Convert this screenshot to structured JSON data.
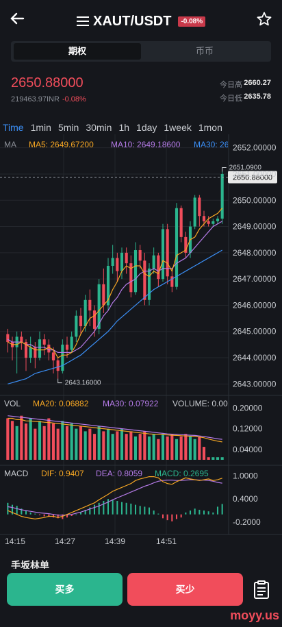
{
  "header": {
    "title": "XAUT/USDT",
    "change_badge": "-0.08%"
  },
  "segment": {
    "active": "期权",
    "inactive": "币币"
  },
  "price": {
    "last": "2650.88000",
    "inr": "219463.97INR",
    "change": "-0.08%"
  },
  "stats": {
    "high_label": "今日高",
    "high_value": "2660.27",
    "low_label": "今日低",
    "low_value": "2635.78"
  },
  "timeframes": [
    "Time",
    "1min",
    "5min",
    "30min",
    "1h",
    "1day",
    "1week",
    "1mon"
  ],
  "ma_legend": {
    "label": "MA",
    "ma5": "MA5: 2649.67200",
    "ma10": "MA10: 2649.18600",
    "ma30": "MA30: 26"
  },
  "vol_legend": {
    "label": "VOL",
    "ma20": "MA20: 0.06882",
    "ma30": "MA30: 0.07922",
    "volume": "VOLUME: 0.00"
  },
  "macd_legend": {
    "label": "MACD",
    "dif": "DIF: 0.9407",
    "dea": "DEA: 0.8059",
    "macd": "MACD: 0.2695"
  },
  "price_axis": [
    "2652.00000",
    "2651.00000",
    "2650.00000",
    "2649.00000",
    "2648.00000",
    "2647.00000",
    "2646.00000",
    "2645.00000",
    "2644.00000",
    "2643.00000"
  ],
  "current_price_tag": "2650.88000",
  "high_marker": "2651.0900",
  "low_marker": "2643.16000",
  "vol_axis": [
    "0.20000",
    "0.12000",
    "0.04000"
  ],
  "macd_axis": [
    "1.0000",
    "0.4000",
    "-0.2000"
  ],
  "time_axis": [
    "14:15",
    "14:27",
    "14:39",
    "14:51"
  ],
  "footer": {
    "buy": "买多",
    "sell": "买少",
    "partial_heading": "手坂林单"
  },
  "watermark": "moyy.us",
  "colors": {
    "up": "#2bb58e",
    "down": "#f14d5b",
    "ma5": "#f5a623",
    "ma10": "#b57be8",
    "ma30": "#3b8ff6",
    "accent": "#3b8ff6"
  },
  "chart_data": {
    "type": "candlestick",
    "price_ylim": [
      2642.8,
      2652.2
    ],
    "candles": [
      {
        "o": 2644.9,
        "c": 2644.6,
        "h": 2645.1,
        "l": 2644.2
      },
      {
        "o": 2644.6,
        "c": 2644.4,
        "h": 2644.8,
        "l": 2643.9
      },
      {
        "o": 2644.4,
        "c": 2644.8,
        "h": 2645.0,
        "l": 2643.4
      },
      {
        "o": 2644.8,
        "c": 2644.6,
        "h": 2645.0,
        "l": 2644.3
      },
      {
        "o": 2644.6,
        "c": 2644.0,
        "h": 2644.7,
        "l": 2643.5
      },
      {
        "o": 2644.0,
        "c": 2644.4,
        "h": 2644.8,
        "l": 2643.8
      },
      {
        "o": 2644.4,
        "c": 2644.0,
        "h": 2644.6,
        "l": 2643.6
      },
      {
        "o": 2644.0,
        "c": 2644.7,
        "h": 2645.0,
        "l": 2643.9
      },
      {
        "o": 2644.7,
        "c": 2644.5,
        "h": 2644.9,
        "l": 2644.1
      },
      {
        "o": 2644.5,
        "c": 2644.2,
        "h": 2644.7,
        "l": 2643.9
      },
      {
        "o": 2644.2,
        "c": 2643.9,
        "h": 2644.4,
        "l": 2643.4
      },
      {
        "o": 2643.9,
        "c": 2643.5,
        "h": 2644.0,
        "l": 2643.2
      },
      {
        "o": 2643.5,
        "c": 2644.5,
        "h": 2644.7,
        "l": 2643.4
      },
      {
        "o": 2644.5,
        "c": 2644.3,
        "h": 2644.8,
        "l": 2644.0
      },
      {
        "o": 2644.3,
        "c": 2644.8,
        "h": 2645.0,
        "l": 2644.2
      },
      {
        "o": 2644.8,
        "c": 2645.6,
        "h": 2645.8,
        "l": 2644.6
      },
      {
        "o": 2645.6,
        "c": 2645.2,
        "h": 2645.9,
        "l": 2644.9
      },
      {
        "o": 2645.2,
        "c": 2646.2,
        "h": 2646.4,
        "l": 2645.0
      },
      {
        "o": 2646.2,
        "c": 2645.8,
        "h": 2646.6,
        "l": 2645.2
      },
      {
        "o": 2645.8,
        "c": 2645.1,
        "h": 2646.0,
        "l": 2644.8
      },
      {
        "o": 2645.1,
        "c": 2646.8,
        "h": 2647.0,
        "l": 2644.9
      },
      {
        "o": 2646.8,
        "c": 2646.0,
        "h": 2647.4,
        "l": 2645.7
      },
      {
        "o": 2646.0,
        "c": 2647.5,
        "h": 2647.8,
        "l": 2645.8
      },
      {
        "o": 2647.5,
        "c": 2647.8,
        "h": 2648.3,
        "l": 2647.2
      },
      {
        "o": 2647.8,
        "c": 2647.3,
        "h": 2648.0,
        "l": 2646.9
      },
      {
        "o": 2647.3,
        "c": 2648.0,
        "h": 2648.2,
        "l": 2647.0
      },
      {
        "o": 2648.0,
        "c": 2647.6,
        "h": 2648.2,
        "l": 2647.2
      },
      {
        "o": 2647.6,
        "c": 2646.5,
        "h": 2647.9,
        "l": 2646.3
      },
      {
        "o": 2646.5,
        "c": 2648.1,
        "h": 2648.4,
        "l": 2646.4
      },
      {
        "o": 2648.1,
        "c": 2647.7,
        "h": 2648.3,
        "l": 2647.4
      },
      {
        "o": 2647.7,
        "c": 2646.2,
        "h": 2648.0,
        "l": 2646.0
      },
      {
        "o": 2646.2,
        "c": 2647.4,
        "h": 2647.6,
        "l": 2646.0
      },
      {
        "o": 2647.4,
        "c": 2647.9,
        "h": 2648.2,
        "l": 2647.2
      },
      {
        "o": 2647.9,
        "c": 2647.0,
        "h": 2648.0,
        "l": 2646.7
      },
      {
        "o": 2647.0,
        "c": 2648.9,
        "h": 2649.1,
        "l": 2646.9
      },
      {
        "o": 2648.9,
        "c": 2647.1,
        "h": 2649.1,
        "l": 2646.8
      },
      {
        "o": 2647.1,
        "c": 2646.7,
        "h": 2647.4,
        "l": 2646.5
      },
      {
        "o": 2646.7,
        "c": 2649.7,
        "h": 2649.9,
        "l": 2646.6
      },
      {
        "o": 2649.7,
        "c": 2648.6,
        "h": 2649.8,
        "l": 2648.4
      },
      {
        "o": 2648.6,
        "c": 2648.0,
        "h": 2648.8,
        "l": 2647.8
      },
      {
        "o": 2648.0,
        "c": 2649.0,
        "h": 2649.2,
        "l": 2647.8
      },
      {
        "o": 2649.0,
        "c": 2650.1,
        "h": 2650.2,
        "l": 2648.9
      },
      {
        "o": 2650.1,
        "c": 2649.4,
        "h": 2650.2,
        "l": 2649.0
      },
      {
        "o": 2649.4,
        "c": 2649.2,
        "h": 2649.6,
        "l": 2649.0
      },
      {
        "o": 2649.2,
        "c": 2649.1,
        "h": 2649.4,
        "l": 2649.0
      },
      {
        "o": 2649.1,
        "c": 2649.2,
        "h": 2649.3,
        "l": 2649.0
      },
      {
        "o": 2649.2,
        "c": 2649.3,
        "h": 2649.4,
        "l": 2649.1
      },
      {
        "o": 2649.3,
        "c": 2651.0,
        "h": 2651.09,
        "l": 2649.1
      }
    ],
    "ma5": [
      2644.6,
      2644.5,
      2644.5,
      2644.6,
      2644.5,
      2644.4,
      2644.3,
      2644.3,
      2644.3,
      2644.4,
      2644.3,
      2644.0,
      2644.1,
      2644.1,
      2644.2,
      2644.5,
      2644.9,
      2645.2,
      2645.5,
      2645.6,
      2645.8,
      2646.0,
      2646.2,
      2646.6,
      2646.9,
      2647.3,
      2647.5,
      2647.4,
      2647.5,
      2647.5,
      2647.2,
      2647.1,
      2647.3,
      2647.2,
      2647.7,
      2647.6,
      2647.3,
      2647.9,
      2648.0,
      2648.1,
      2648.5,
      2648.6,
      2648.9,
      2649.1,
      2649.3,
      2649.4,
      2649.5,
      2649.7
    ],
    "ma10": [
      2644.7,
      2644.6,
      2644.6,
      2644.6,
      2644.5,
      2644.5,
      2644.4,
      2644.4,
      2644.4,
      2644.3,
      2644.3,
      2644.2,
      2644.2,
      2644.2,
      2644.2,
      2644.3,
      2644.4,
      2644.6,
      2644.8,
      2645.0,
      2645.3,
      2645.6,
      2645.8,
      2646.1,
      2646.3,
      2646.6,
      2646.8,
      2646.9,
      2647.0,
      2647.2,
      2647.3,
      2647.3,
      2647.4,
      2647.3,
      2647.4,
      2647.4,
      2647.4,
      2647.6,
      2647.7,
      2647.8,
      2648.0,
      2648.2,
      2648.4,
      2648.6,
      2648.8,
      2649.0,
      2649.1,
      2649.2
    ],
    "ma30": [
      2643.0,
      2643.05,
      2643.1,
      2643.15,
      2643.2,
      2643.3,
      2643.4,
      2643.45,
      2643.5,
      2643.55,
      2643.6,
      2643.65,
      2643.7,
      2643.8,
      2643.9,
      2644.0,
      2644.1,
      2644.25,
      2644.4,
      2644.55,
      2644.7,
      2644.85,
      2645.0,
      2645.2,
      2645.4,
      2645.55,
      2645.7,
      2645.85,
      2646.0,
      2646.15,
      2646.3,
      2646.45,
      2646.6,
      2646.7,
      2646.8,
      2646.9,
      2647.0,
      2647.1,
      2647.2,
      2647.3,
      2647.4,
      2647.5,
      2647.6,
      2647.7,
      2647.8,
      2647.9,
      2648.0,
      2648.1
    ],
    "vol_ylim": [
      0,
      0.23
    ],
    "volume": [
      0.16,
      0.15,
      0.13,
      0.17,
      0.14,
      0.16,
      0.12,
      0.15,
      0.13,
      0.16,
      0.14,
      0.12,
      0.15,
      0.13,
      0.14,
      0.12,
      0.13,
      0.11,
      0.12,
      0.1,
      0.13,
      0.11,
      0.12,
      0.1,
      0.11,
      0.12,
      0.1,
      0.11,
      0.09,
      0.1,
      0.11,
      0.09,
      0.1,
      0.08,
      0.1,
      0.09,
      0.1,
      0.08,
      0.09,
      0.1,
      0.09,
      0.08,
      0.09,
      0.05,
      0.01,
      0.01,
      0.01,
      0.01
    ],
    "vol_ma20": [
      0.16,
      0.16,
      0.155,
      0.155,
      0.15,
      0.15,
      0.148,
      0.147,
      0.145,
      0.144,
      0.142,
      0.14,
      0.138,
      0.136,
      0.134,
      0.132,
      0.13,
      0.128,
      0.126,
      0.124,
      0.122,
      0.12,
      0.118,
      0.116,
      0.114,
      0.112,
      0.11,
      0.108,
      0.106,
      0.104,
      0.102,
      0.1,
      0.099,
      0.098,
      0.097,
      0.096,
      0.095,
      0.094,
      0.093,
      0.092,
      0.091,
      0.09,
      0.088,
      0.085,
      0.08,
      0.076,
      0.072,
      0.069
    ],
    "vol_ma30": [
      0.17,
      0.168,
      0.166,
      0.164,
      0.162,
      0.16,
      0.158,
      0.156,
      0.154,
      0.152,
      0.15,
      0.148,
      0.146,
      0.144,
      0.142,
      0.14,
      0.138,
      0.136,
      0.134,
      0.132,
      0.13,
      0.128,
      0.126,
      0.124,
      0.122,
      0.12,
      0.118,
      0.116,
      0.114,
      0.112,
      0.11,
      0.108,
      0.106,
      0.104,
      0.102,
      0.1,
      0.099,
      0.098,
      0.097,
      0.096,
      0.095,
      0.094,
      0.092,
      0.09,
      0.087,
      0.084,
      0.081,
      0.079
    ],
    "macd_ylim": [
      -0.45,
      1.15
    ],
    "macd_hist": [
      0.3,
      0.25,
      0.22,
      0.15,
      0.1,
      0.05,
      0.02,
      -0.02,
      -0.05,
      -0.06,
      -0.08,
      -0.1,
      -0.12,
      -0.08,
      -0.04,
      0.0,
      0.05,
      0.12,
      0.18,
      0.25,
      0.3,
      0.35,
      0.4,
      0.38,
      0.35,
      0.32,
      0.3,
      0.28,
      0.25,
      0.22,
      0.2,
      0.18,
      0.1,
      0.02,
      -0.1,
      -0.15,
      -0.18,
      -0.12,
      -0.08,
      0.05,
      0.1,
      0.15,
      0.12,
      0.1,
      0.08,
      0.05,
      0.2,
      0.27
    ],
    "dif": [
      0.1,
      0.05,
      0.0,
      -0.05,
      -0.08,
      -0.1,
      -0.12,
      -0.1,
      -0.08,
      -0.05,
      -0.05,
      -0.08,
      -0.05,
      0.0,
      0.05,
      0.1,
      0.15,
      0.2,
      0.25,
      0.3,
      0.38,
      0.45,
      0.52,
      0.6,
      0.65,
      0.7,
      0.75,
      0.8,
      0.88,
      0.92,
      0.95,
      0.98,
      0.98,
      0.95,
      0.85,
      0.8,
      0.78,
      0.85,
      0.9,
      0.95,
      0.92,
      0.9,
      0.88,
      0.9,
      0.92,
      0.88,
      0.9,
      0.94
    ],
    "dea": [
      0.2,
      0.18,
      0.15,
      0.12,
      0.1,
      0.08,
      0.06,
      0.04,
      0.03,
      0.02,
      0.0,
      -0.02,
      -0.02,
      -0.01,
      0.0,
      0.03,
      0.06,
      0.1,
      0.14,
      0.18,
      0.22,
      0.27,
      0.32,
      0.38,
      0.43,
      0.48,
      0.53,
      0.58,
      0.63,
      0.68,
      0.73,
      0.77,
      0.82,
      0.86,
      0.88,
      0.89,
      0.89,
      0.88,
      0.88,
      0.89,
      0.9,
      0.9,
      0.89,
      0.89,
      0.88,
      0.86,
      0.83,
      0.81
    ]
  }
}
